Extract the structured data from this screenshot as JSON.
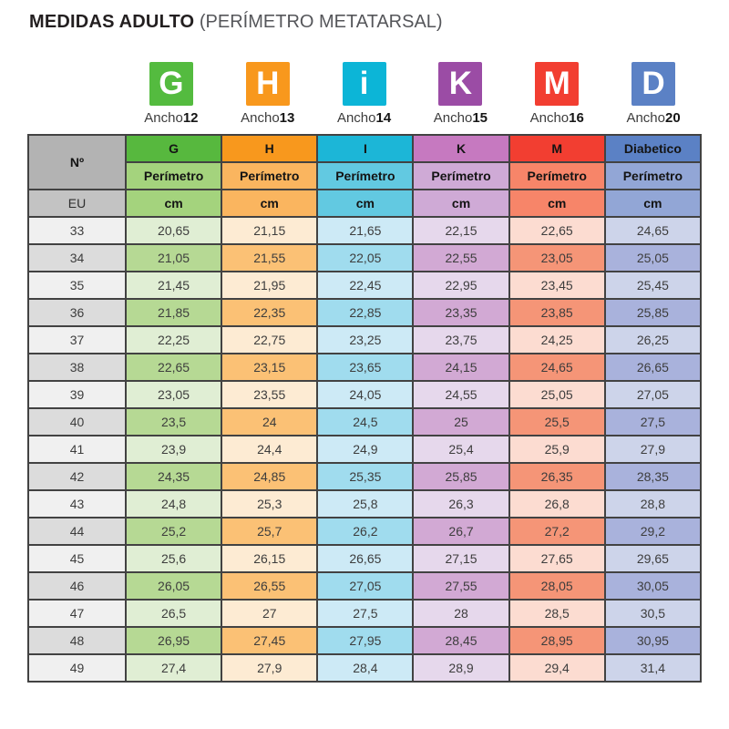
{
  "title": {
    "main": "MEDIDAS ADULTO",
    "sub": "(PERÍMETRO METATARSAL)"
  },
  "badges": [
    {
      "letter": "G",
      "ancho_label": "Ancho",
      "ancho_value": "12",
      "color": "#54bb3f"
    },
    {
      "letter": "H",
      "ancho_label": "Ancho",
      "ancho_value": "13",
      "color": "#f8981d"
    },
    {
      "letter": "i",
      "ancho_label": "Ancho",
      "ancho_value": "14",
      "color": "#0cb5d7"
    },
    {
      "letter": "K",
      "ancho_label": "Ancho",
      "ancho_value": "15",
      "color": "#9b4ca5"
    },
    {
      "letter": "M",
      "ancho_label": "Ancho",
      "ancho_value": "16",
      "color": "#f23e31"
    },
    {
      "letter": "D",
      "ancho_label": "Ancho",
      "ancho_value": "20",
      "color": "#5b81c5"
    }
  ],
  "table": {
    "corner_label": "Nº",
    "eu_label": "EU",
    "perimeter_label": "Perímetro",
    "unit_label": "cm",
    "gray": {
      "corner": "#b3b3b3",
      "eu": "#c3c3c3",
      "row_light": "#f0f0f0",
      "row_dark": "#dcdcdc"
    },
    "columns": [
      {
        "label": "G",
        "header_color": "#57b83e",
        "mid_color": "#a4d37d",
        "row_light": "#e0eed4",
        "row_dark": "#b6d994"
      },
      {
        "label": "H",
        "header_color": "#f8981d",
        "mid_color": "#fab55f",
        "row_light": "#fdebd3",
        "row_dark": "#fbc175"
      },
      {
        "label": "I",
        "header_color": "#1cb6d7",
        "mid_color": "#62c9e1",
        "row_light": "#cdeaf6",
        "row_dark": "#a0dcee"
      },
      {
        "label": "K",
        "header_color": "#c679c0",
        "mid_color": "#cfaad6",
        "row_light": "#e6d8ec",
        "row_dark": "#d2a9d4"
      },
      {
        "label": "M",
        "header_color": "#f23e31",
        "mid_color": "#f78569",
        "row_light": "#fcdcd1",
        "row_dark": "#f59577"
      },
      {
        "label": "Diabetico",
        "header_color": "#5b81c5",
        "mid_color": "#92a6d6",
        "row_light": "#cdd4ea",
        "row_dark": "#a9b2dc"
      }
    ],
    "rows": [
      {
        "size": "33",
        "values": [
          "20,65",
          "21,15",
          "21,65",
          "22,15",
          "22,65",
          "24,65"
        ]
      },
      {
        "size": "34",
        "values": [
          "21,05",
          "21,55",
          "22,05",
          "22,55",
          "23,05",
          "25,05"
        ]
      },
      {
        "size": "35",
        "values": [
          "21,45",
          "21,95",
          "22,45",
          "22,95",
          "23,45",
          "25,45"
        ]
      },
      {
        "size": "36",
        "values": [
          "21,85",
          "22,35",
          "22,85",
          "23,35",
          "23,85",
          "25,85"
        ]
      },
      {
        "size": "37",
        "values": [
          "22,25",
          "22,75",
          "23,25",
          "23,75",
          "24,25",
          "26,25"
        ]
      },
      {
        "size": "38",
        "values": [
          "22,65",
          "23,15",
          "23,65",
          "24,15",
          "24,65",
          "26,65"
        ]
      },
      {
        "size": "39",
        "values": [
          "23,05",
          "23,55",
          "24,05",
          "24,55",
          "25,05",
          "27,05"
        ]
      },
      {
        "size": "40",
        "values": [
          "23,5",
          "24",
          "24,5",
          "25",
          "25,5",
          "27,5"
        ]
      },
      {
        "size": "41",
        "values": [
          "23,9",
          "24,4",
          "24,9",
          "25,4",
          "25,9",
          "27,9"
        ]
      },
      {
        "size": "42",
        "values": [
          "24,35",
          "24,85",
          "25,35",
          "25,85",
          "26,35",
          "28,35"
        ]
      },
      {
        "size": "43",
        "values": [
          "24,8",
          "25,3",
          "25,8",
          "26,3",
          "26,8",
          "28,8"
        ]
      },
      {
        "size": "44",
        "values": [
          "25,2",
          "25,7",
          "26,2",
          "26,7",
          "27,2",
          "29,2"
        ]
      },
      {
        "size": "45",
        "values": [
          "25,6",
          "26,15",
          "26,65",
          "27,15",
          "27,65",
          "29,65"
        ]
      },
      {
        "size": "46",
        "values": [
          "26,05",
          "26,55",
          "27,05",
          "27,55",
          "28,05",
          "30,05"
        ]
      },
      {
        "size": "47",
        "values": [
          "26,5",
          "27",
          "27,5",
          "28",
          "28,5",
          "30,5"
        ]
      },
      {
        "size": "48",
        "values": [
          "26,95",
          "27,45",
          "27,95",
          "28,45",
          "28,95",
          "30,95"
        ]
      },
      {
        "size": "49",
        "values": [
          "27,4",
          "27,9",
          "28,4",
          "28,9",
          "29,4",
          "31,4"
        ]
      }
    ]
  },
  "chart_data": {
    "type": "table",
    "title": "MEDIDAS ADULTO (PERÍMETRO METATARSAL)",
    "unit": "cm",
    "columns": [
      "Nº EU",
      "G (Ancho 12)",
      "H (Ancho 13)",
      "I (Ancho 14)",
      "K (Ancho 15)",
      "M (Ancho 16)",
      "Diabetico (Ancho 20)"
    ],
    "rows": [
      [
        33,
        20.65,
        21.15,
        21.65,
        22.15,
        22.65,
        24.65
      ],
      [
        34,
        21.05,
        21.55,
        22.05,
        22.55,
        23.05,
        25.05
      ],
      [
        35,
        21.45,
        21.95,
        22.45,
        22.95,
        23.45,
        25.45
      ],
      [
        36,
        21.85,
        22.35,
        22.85,
        23.35,
        23.85,
        25.85
      ],
      [
        37,
        22.25,
        22.75,
        23.25,
        23.75,
        24.25,
        26.25
      ],
      [
        38,
        22.65,
        23.15,
        23.65,
        24.15,
        24.65,
        26.65
      ],
      [
        39,
        23.05,
        23.55,
        24.05,
        24.55,
        25.05,
        27.05
      ],
      [
        40,
        23.5,
        24,
        24.5,
        25,
        25.5,
        27.5
      ],
      [
        41,
        23.9,
        24.4,
        24.9,
        25.4,
        25.9,
        27.9
      ],
      [
        42,
        24.35,
        24.85,
        25.35,
        25.85,
        26.35,
        28.35
      ],
      [
        43,
        24.8,
        25.3,
        25.8,
        26.3,
        26.8,
        28.8
      ],
      [
        44,
        25.2,
        25.7,
        26.2,
        26.7,
        27.2,
        29.2
      ],
      [
        45,
        25.6,
        26.15,
        26.65,
        27.15,
        27.65,
        29.65
      ],
      [
        46,
        26.05,
        26.55,
        27.05,
        27.55,
        28.05,
        30.05
      ],
      [
        47,
        26.5,
        27,
        27.5,
        28,
        28.5,
        30.5
      ],
      [
        48,
        26.95,
        27.45,
        27.95,
        28.45,
        28.95,
        30.95
      ],
      [
        49,
        27.4,
        27.9,
        28.4,
        28.9,
        29.4,
        31.4
      ]
    ]
  }
}
